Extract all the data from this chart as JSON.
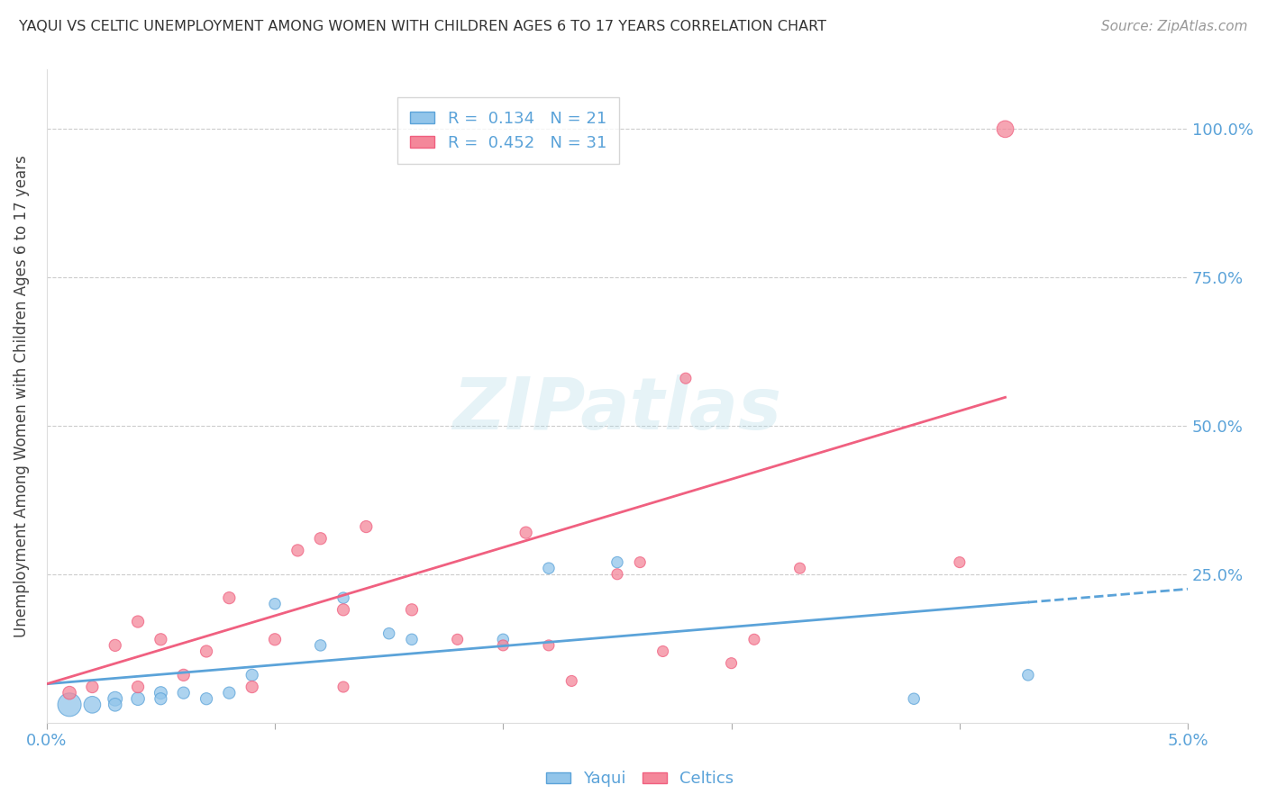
{
  "title": "YAQUI VS CELTIC UNEMPLOYMENT AMONG WOMEN WITH CHILDREN AGES 6 TO 17 YEARS CORRELATION CHART",
  "source": "Source: ZipAtlas.com",
  "ylabel": "Unemployment Among Women with Children Ages 6 to 17 years",
  "y_tick_labels": [
    "25.0%",
    "50.0%",
    "75.0%",
    "100.0%"
  ],
  "y_tick_values": [
    0.25,
    0.5,
    0.75,
    1.0
  ],
  "legend_label1": "R =  0.134   N = 21",
  "legend_label2": "R =  0.452   N = 31",
  "yaqui_color": "#92C5EA",
  "celtics_color": "#F4879A",
  "yaqui_line_color": "#5BA3D9",
  "celtics_line_color": "#F06080",
  "background_color": "#FFFFFF",
  "grid_color": "#CCCCCC",
  "axis_label_color": "#5BA3D9",
  "title_color": "#333333",
  "yaqui_x": [
    0.001,
    0.002,
    0.003,
    0.003,
    0.004,
    0.005,
    0.005,
    0.006,
    0.007,
    0.008,
    0.009,
    0.01,
    0.012,
    0.013,
    0.015,
    0.016,
    0.02,
    0.022,
    0.025,
    0.038,
    0.043
  ],
  "yaqui_y": [
    0.03,
    0.03,
    0.04,
    0.03,
    0.04,
    0.05,
    0.04,
    0.05,
    0.04,
    0.05,
    0.08,
    0.2,
    0.13,
    0.21,
    0.15,
    0.14,
    0.14,
    0.26,
    0.27,
    0.04,
    0.08
  ],
  "yaqui_sizes": [
    350,
    180,
    130,
    110,
    110,
    100,
    90,
    90,
    90,
    90,
    90,
    80,
    80,
    80,
    80,
    80,
    80,
    80,
    80,
    80,
    80
  ],
  "celtics_x": [
    0.001,
    0.002,
    0.003,
    0.004,
    0.004,
    0.005,
    0.006,
    0.007,
    0.008,
    0.009,
    0.01,
    0.011,
    0.012,
    0.013,
    0.013,
    0.014,
    0.016,
    0.018,
    0.02,
    0.021,
    0.022,
    0.023,
    0.025,
    0.026,
    0.027,
    0.028,
    0.03,
    0.031,
    0.033,
    0.04,
    0.042
  ],
  "celtics_y": [
    0.05,
    0.06,
    0.13,
    0.06,
    0.17,
    0.14,
    0.08,
    0.12,
    0.21,
    0.06,
    0.14,
    0.29,
    0.31,
    0.19,
    0.06,
    0.33,
    0.19,
    0.14,
    0.13,
    0.32,
    0.13,
    0.07,
    0.25,
    0.27,
    0.12,
    0.58,
    0.1,
    0.14,
    0.26,
    0.27,
    1.0
  ],
  "celtics_sizes": [
    110,
    90,
    90,
    90,
    90,
    90,
    90,
    90,
    90,
    90,
    90,
    90,
    90,
    90,
    75,
    90,
    90,
    75,
    75,
    90,
    75,
    75,
    75,
    75,
    75,
    75,
    75,
    75,
    75,
    75,
    180
  ],
  "xlim": [
    0.0,
    0.05
  ],
  "ylim": [
    0.0,
    1.1
  ],
  "yline_x_start": 0.0,
  "yline_x_solid_end": 0.043,
  "yline_x_dash_end": 0.05,
  "cline_x_start": 0.0,
  "cline_x_end": 0.042
}
